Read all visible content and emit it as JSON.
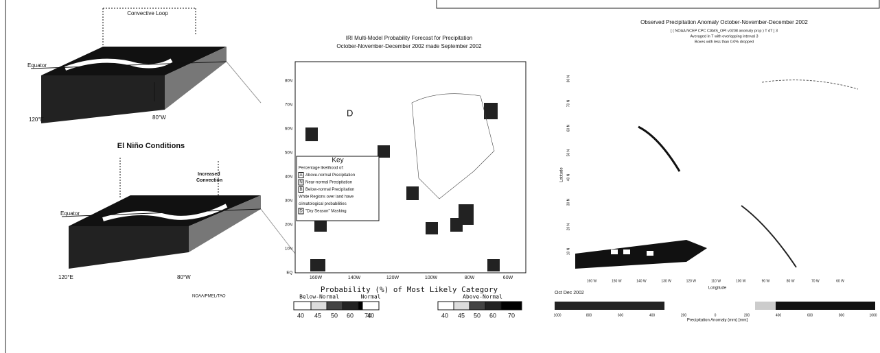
{
  "left_figure": {
    "top": {
      "label": "Convective Loop",
      "equator": "Equator",
      "west": "120°E",
      "east": "80°W"
    },
    "heading": "El Niño Conditions",
    "bottom": {
      "label": [
        "Increased",
        "Convection"
      ],
      "equator": "Equator",
      "west": "120°E",
      "east": "80°W"
    },
    "credit": "NOAA/PMEL/TAO"
  },
  "middle_figure": {
    "title": [
      "IRI Multi-Model Probability Forecast for Precipitation",
      "October-November-December 2002 made September 2002"
    ],
    "lat_labels": [
      "80N",
      "70N",
      "60N",
      "50N",
      "40N",
      "30N",
      "20N",
      "10N",
      "EQ"
    ],
    "lon_labels": [
      "160W",
      "140W",
      "120W",
      "100W",
      "80W",
      "60W"
    ],
    "dry_marker": "D",
    "key": {
      "title": "Key",
      "lines": [
        "Percentage likelihood of:",
        "Above-normal Precipitation",
        "Near-normal Precipitation",
        "Below-normal Precipitation",
        "White Regions over land have",
        "climatological probabilities",
        "\"Dry Season\" Masking"
      ],
      "letters": [
        "A",
        "N",
        "B",
        "D"
      ]
    },
    "legend": {
      "title": "Probability (%) of Most Likely Category",
      "groups": [
        "Below-Normal",
        "Normal",
        "Above-Normal"
      ],
      "below": [
        "40",
        "45",
        "50",
        "60",
        "70"
      ],
      "normal": [
        "40"
      ],
      "above": [
        "40",
        "45",
        "50",
        "60",
        "70"
      ]
    }
  },
  "right_figure": {
    "title": "Observed Precipitation Anomaly October-November-December 2002",
    "subtitle": [
      "[ ( NOAA NCEP CPC CAMS_OPI v0208 anomaly prcp ) T dT ] 3",
      "Averaged in T with overlapping interval 3",
      "Boxes with less than 0.0% dropped"
    ],
    "lat_labels": [
      "80 N",
      "70 N",
      "60 N",
      "50 N",
      "40 N",
      "30 N",
      "20 N",
      "10 N"
    ],
    "lon_labels": [
      "160 W",
      "150 W",
      "140 W",
      "130 W",
      "120 W",
      "110 W",
      "100 W",
      "90 W",
      "80 W",
      "70 W",
      "60 W"
    ],
    "x_label": "Longitude",
    "y_label": "Latitude",
    "period": "Oct Dec 2002",
    "colorbar_labels": [
      "1000",
      "800",
      "600",
      "400",
      "200",
      "0",
      "200",
      "400",
      "600",
      "800",
      "1000"
    ],
    "colorbar_title": "Precipitation Anomaly (mm) [mm]"
  }
}
